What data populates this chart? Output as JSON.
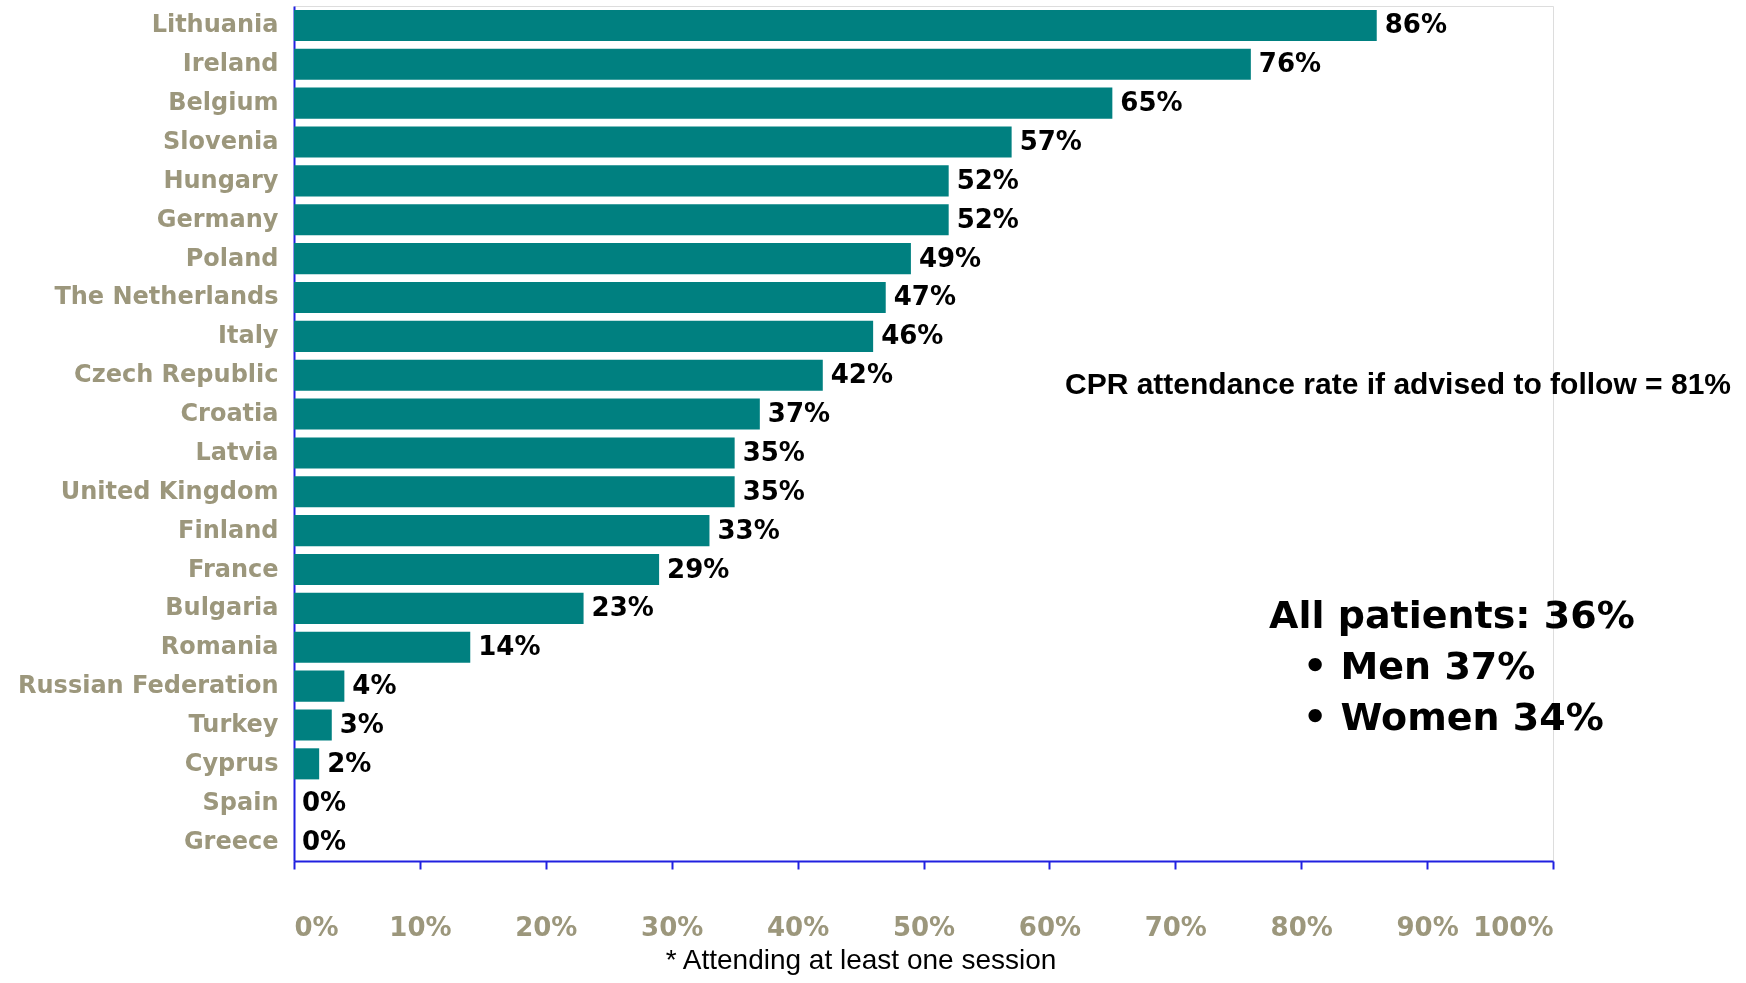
{
  "chart_data": {
    "type": "bar",
    "orientation": "horizontal",
    "categories": [
      "Lithuania",
      "Ireland",
      "Belgium",
      "Slovenia",
      "Hungary",
      "Germany",
      "Poland",
      "The Netherlands",
      "Italy",
      "Czech Republic",
      "Croatia",
      "Latvia",
      "United Kingdom",
      "Finland",
      "France",
      "Bulgaria",
      "Romania",
      "Russian Federation",
      "Turkey",
      "Cyprus",
      "Spain",
      "Greece"
    ],
    "values": [
      86,
      76,
      65,
      57,
      52,
      52,
      49,
      47,
      46,
      42,
      37,
      35,
      35,
      33,
      29,
      23,
      14,
      4,
      3,
      2,
      0,
      0
    ],
    "value_labels": [
      "86%",
      "76%",
      "65%",
      "57%",
      "52%",
      "52%",
      "49%",
      "47%",
      "46%",
      "42%",
      "37%",
      "35%",
      "35%",
      "33%",
      "29%",
      "23%",
      "14%",
      "4%",
      "3%",
      "2%",
      "0%",
      "0%"
    ],
    "color": "#008080",
    "xlim": [
      0,
      100
    ],
    "xticks": [
      {
        "value": 0,
        "label": "0%"
      },
      {
        "value": 10,
        "label": "10%"
      },
      {
        "value": 20,
        "label": "20%"
      },
      {
        "value": 30,
        "label": "30%"
      },
      {
        "value": 40,
        "label": "40%"
      },
      {
        "value": 50,
        "label": "50%"
      },
      {
        "value": 60,
        "label": "60%"
      },
      {
        "value": 70,
        "label": "70%"
      },
      {
        "value": 80,
        "label": "80%"
      },
      {
        "value": 90,
        "label": "90%"
      },
      {
        "value": 100,
        "label": "100%"
      }
    ],
    "grid": false,
    "annotations": [
      "CPR attendance rate if advised to follow = 81%",
      "All patients: 36%",
      "•  Men       37%",
      "•  Women   34%",
      "* Attending at least one session"
    ]
  }
}
